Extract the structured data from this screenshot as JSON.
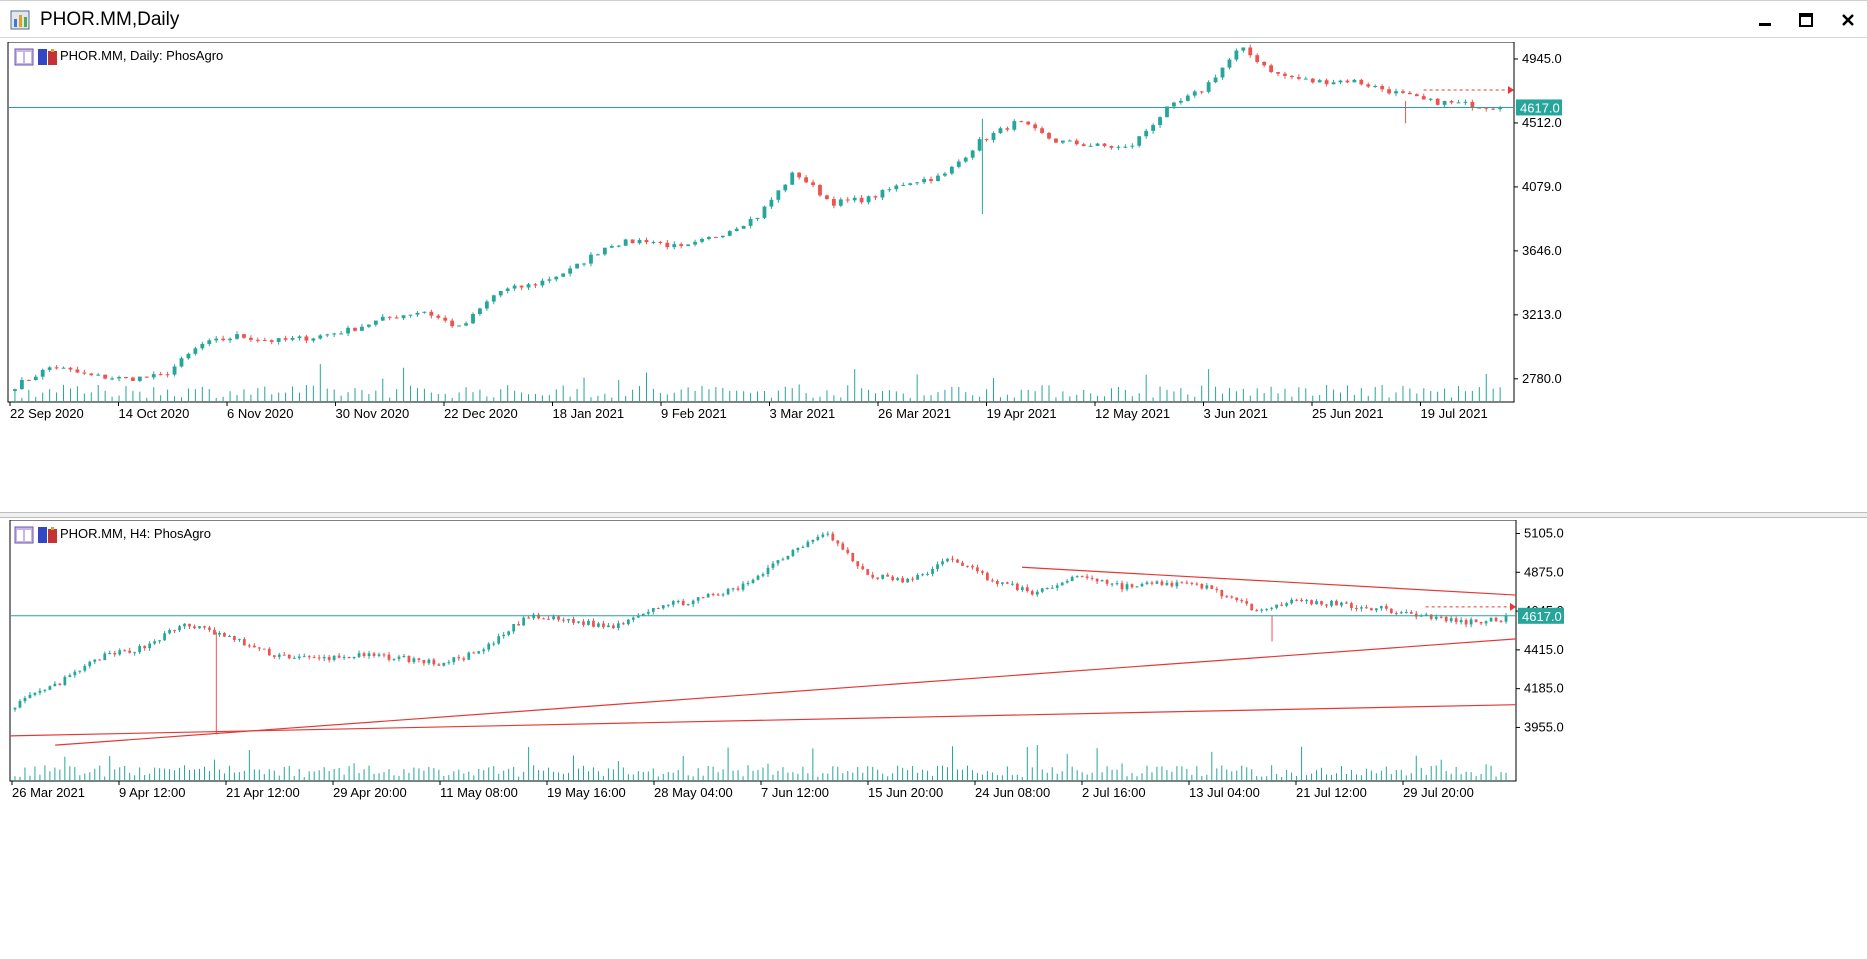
{
  "window": {
    "title": "PHOR.MM,Daily"
  },
  "colors": {
    "bull": "#26a69a",
    "bear": "#ef5350",
    "volume": "#26a69a",
    "hline": "#26a69a",
    "trend": "#e53935",
    "frame": "#000000"
  },
  "icons": {
    "app": "chart-app-icon",
    "minimize": "minimize-icon",
    "maximize": "maximize-icon",
    "close": "close-icon"
  },
  "top_chart": {
    "label": "PHOR.MM, Daily:  PhosAgro",
    "price_labels": [
      "4945.0",
      "4512.0",
      "4079.0",
      "3646.0",
      "3213.0",
      "2780.0"
    ],
    "current_price": "4617.0",
    "time_labels": [
      "22 Sep 2020",
      "14 Oct 2020",
      "6 Nov 2020",
      "30 Nov 2020",
      "22 Dec 2020",
      "18 Jan 2021",
      "9 Feb 2021",
      "3 Mar 2021",
      "26 Mar 2021",
      "19 Apr 2021",
      "12 May 2021",
      "3 Jun 2021",
      "25 Jun 2021",
      "19 Jul 2021"
    ]
  },
  "bottom_chart": {
    "label": "PHOR.MM, H4:  PhosAgro",
    "price_labels": [
      "5105.0",
      "4875.0",
      "4645.0",
      "4415.0",
      "4185.0",
      "3955.0"
    ],
    "current_price": "4617.0",
    "time_labels": [
      "26 Mar 2021",
      "9 Apr 12:00",
      "21 Apr 12:00",
      "29 Apr 20:00",
      "11 May 08:00",
      "19 May 16:00",
      "28 May 04:00",
      "7 Jun 12:00",
      "15 Jun 20:00",
      "24 Jun 08:00",
      "2 Jul 16:00",
      "13 Jul 04:00",
      "21 Jul 12:00",
      "29 Jul 20:00"
    ]
  },
  "chart_data": [
    {
      "type": "candlestick",
      "title": "PHOR.MM, Daily:  PhosAgro",
      "ylim": [
        2650,
        5060
      ],
      "current_price": 4617.0,
      "x": [
        "22 Sep 2020",
        "14 Oct 2020",
        "6 Nov 2020",
        "30 Nov 2020",
        "22 Dec 2020",
        "18 Jan 2021",
        "9 Feb 2021",
        "3 Mar 2021",
        "26 Mar 2021",
        "19 Apr 2021",
        "12 May 2021",
        "3 Jun 2021",
        "25 Jun 2021",
        "19 Jul 2021"
      ],
      "close_path": [
        2730,
        2865,
        2800,
        2780,
        2800,
        3010,
        3070,
        3035,
        3060,
        3110,
        3190,
        3240,
        3120,
        3370,
        3420,
        3520,
        3690,
        3720,
        3660,
        3760,
        3880,
        4180,
        3970,
        4000,
        4110,
        4150,
        4390,
        4520,
        4390,
        4360,
        4340,
        4600,
        4740,
        5020,
        4840,
        4790,
        4800,
        4730,
        4660,
        4640,
        4617
      ]
    },
    {
      "type": "candlestick",
      "title": "PHOR.MM, H4:  PhosAgro",
      "ylim": [
        3845,
        5185
      ],
      "current_price": 4617.0,
      "x": [
        "26 Mar 2021",
        "9 Apr 12:00",
        "21 Apr 12:00",
        "29 Apr 20:00",
        "11 May 08:00",
        "19 May 16:00",
        "28 May 04:00",
        "7 Jun 12:00",
        "15 Jun 20:00",
        "24 Jun 08:00",
        "2 Jul 16:00",
        "13 Jul 04:00",
        "21 Jul 12:00",
        "29 Jul 20:00"
      ],
      "close_path": [
        4090,
        4210,
        4370,
        4430,
        4570,
        4490,
        4390,
        4360,
        4380,
        4370,
        4330,
        4410,
        4610,
        4590,
        4550,
        4670,
        4710,
        4780,
        4960,
        5120,
        4860,
        4820,
        4960,
        4820,
        4750,
        4860,
        4790,
        4810,
        4790,
        4660,
        4700,
        4690,
        4660,
        4620,
        4580,
        4600
      ]
    }
  ]
}
